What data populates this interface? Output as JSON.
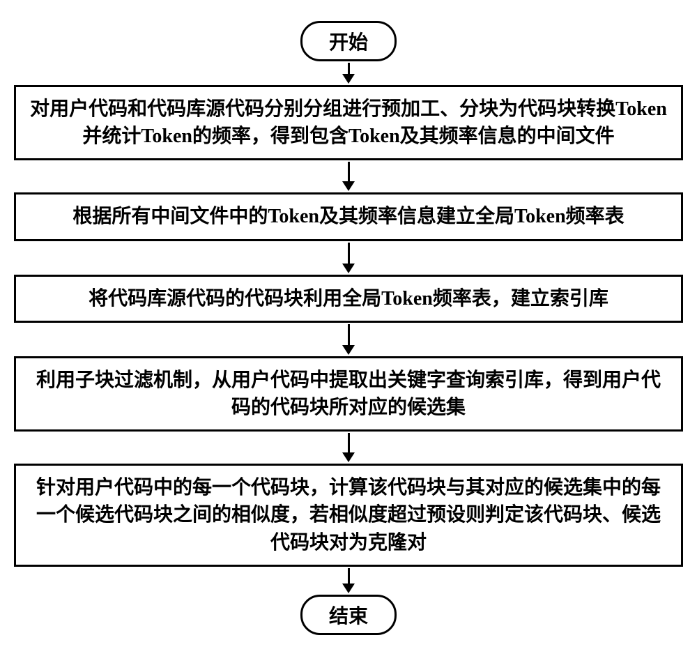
{
  "flowchart": {
    "type": "flowchart",
    "background_color": "#ffffff",
    "border_color": "#000000",
    "border_width": 3,
    "font_family": "SimSun",
    "font_size": 28,
    "font_weight": "bold",
    "text_color": "#000000",
    "terminal_radius": 28,
    "arrow_color": "#000000",
    "arrow_line_width": 3,
    "arrow_head_size": 14,
    "nodes": [
      {
        "id": "start",
        "type": "terminal",
        "label": "开始"
      },
      {
        "id": "step1",
        "type": "process",
        "label": "对用户代码和代码库源代码分别分组进行预加工、分块为代码块转换Token并统计Token的频率，得到包含Token及其频率信息的中间文件"
      },
      {
        "id": "step2",
        "type": "process",
        "label": "根据所有中间文件中的Token及其频率信息建立全局Token频率表"
      },
      {
        "id": "step3",
        "type": "process",
        "label": "将代码库源代码的代码块利用全局Token频率表，建立索引库"
      },
      {
        "id": "step4",
        "type": "process",
        "label": "利用子块过滤机制，从用户代码中提取出关键字查询索引库，得到用户代码的代码块所对应的候选集"
      },
      {
        "id": "step5",
        "type": "process",
        "label": "针对用户代码中的每一个代码块，计算该代码块与其对应的候选集中的每一个候选代码块之间的相似度，若相似度超过预设则判定该代码块、候选代码块对为克隆对"
      },
      {
        "id": "end",
        "type": "terminal",
        "label": "结束"
      }
    ],
    "edges": [
      {
        "from": "start",
        "to": "step1",
        "length": 16
      },
      {
        "from": "step1",
        "to": "step2",
        "length": 28
      },
      {
        "from": "step2",
        "to": "step3",
        "length": 30
      },
      {
        "from": "step3",
        "to": "step4",
        "length": 30
      },
      {
        "from": "step4",
        "to": "step5",
        "length": 28
      },
      {
        "from": "step5",
        "to": "end",
        "length": 22
      }
    ]
  }
}
